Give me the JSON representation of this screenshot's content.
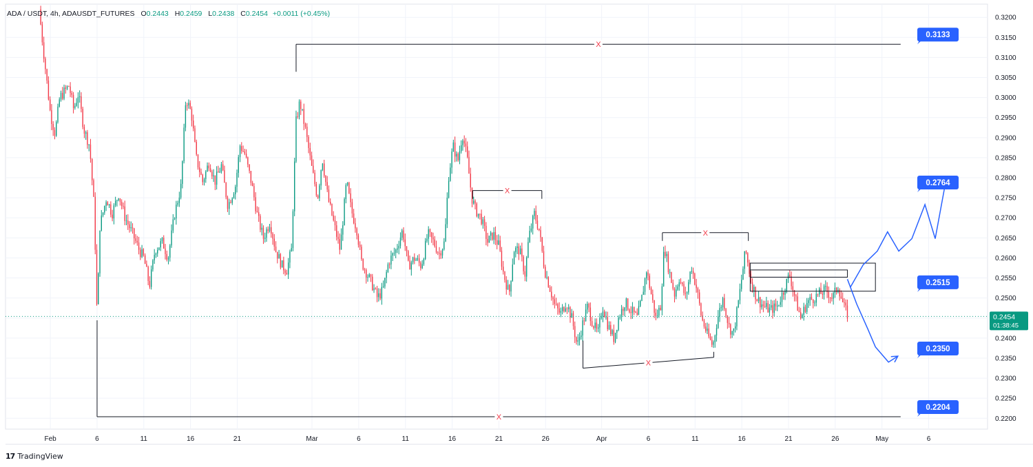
{
  "header": {
    "symbol": "ADA / USDT, 4h, ADAUSDT_FUTURES",
    "open_label": "O",
    "open": "0.2443",
    "high_label": "H",
    "high": "0.2459",
    "low_label": "L",
    "low": "0.2438",
    "close_label": "C",
    "close": "0.2454",
    "change": "+0.0011 (+0.45%)"
  },
  "watermark": {
    "logo": "17",
    "text": "TradingView"
  },
  "colors": {
    "up": "#089981",
    "down": "#f23645",
    "accent": "#2962ff",
    "grid": "#f0f3fa",
    "level_line": "#131722",
    "marker": "#f23645"
  },
  "chart_data": {
    "type": "candlestick",
    "title": "ADA / USDT, 4h, ADAUSDT_FUTURES",
    "ylim": [
      0.2173,
      0.3233
    ],
    "y_ticks": [
      "0.3200",
      "0.3150",
      "0.3100",
      "0.3050",
      "0.3000",
      "0.2950",
      "0.2900",
      "0.2850",
      "0.2800",
      "0.2750",
      "0.2700",
      "0.2650",
      "0.2600",
      "0.2550",
      "0.2500",
      "0.2450",
      "0.2400",
      "0.2350",
      "0.2300",
      "0.2250",
      "0.2200"
    ],
    "x_ticks": [
      {
        "label": "Feb",
        "t": 0
      },
      {
        "label": "6",
        "t": 5
      },
      {
        "label": "11",
        "t": 10
      },
      {
        "label": "16",
        "t": 15
      },
      {
        "label": "21",
        "t": 20
      },
      {
        "label": "Mar",
        "t": 28
      },
      {
        "label": "6",
        "t": 33
      },
      {
        "label": "11",
        "t": 38
      },
      {
        "label": "16",
        "t": 43
      },
      {
        "label": "21",
        "t": 48
      },
      {
        "label": "26",
        "t": 53
      },
      {
        "label": "Apr",
        "t": 59
      },
      {
        "label": "6",
        "t": 64
      },
      {
        "label": "11",
        "t": 69
      },
      {
        "label": "16",
        "t": 74
      },
      {
        "label": "21",
        "t": 79
      },
      {
        "label": "26",
        "t": 84
      },
      {
        "label": "May",
        "t": 89
      },
      {
        "label": "6",
        "t": 94
      }
    ],
    "t_range": [
      -4.8,
      100.3
    ],
    "price_path": [
      [
        -1.2,
        0.322
      ],
      [
        -0.8,
        0.313
      ],
      [
        0,
        0.296
      ],
      [
        0.5,
        0.291
      ],
      [
        1,
        0.3
      ],
      [
        2,
        0.303
      ],
      [
        2.5,
        0.297
      ],
      [
        3,
        0.301
      ],
      [
        3.6,
        0.292
      ],
      [
        4.2,
        0.288
      ],
      [
        4.7,
        0.272
      ],
      [
        5,
        0.245
      ],
      [
        5.3,
        0.268
      ],
      [
        6,
        0.275
      ],
      [
        6.6,
        0.271
      ],
      [
        7.3,
        0.276
      ],
      [
        8,
        0.27
      ],
      [
        8.8,
        0.266
      ],
      [
        9.5,
        0.262
      ],
      [
        10,
        0.26
      ],
      [
        10.6,
        0.253
      ],
      [
        11.2,
        0.262
      ],
      [
        12,
        0.264
      ],
      [
        12.6,
        0.26
      ],
      [
        13.3,
        0.271
      ],
      [
        14,
        0.278
      ],
      [
        14.5,
        0.3
      ],
      [
        15.1,
        0.296
      ],
      [
        15.6,
        0.285
      ],
      [
        16.3,
        0.279
      ],
      [
        17,
        0.284
      ],
      [
        17.6,
        0.279
      ],
      [
        18.3,
        0.283
      ],
      [
        19,
        0.273
      ],
      [
        19.8,
        0.278
      ],
      [
        20.3,
        0.288
      ],
      [
        20.8,
        0.286
      ],
      [
        21.5,
        0.279
      ],
      [
        22.2,
        0.27
      ],
      [
        22.8,
        0.265
      ],
      [
        23.5,
        0.269
      ],
      [
        24.1,
        0.262
      ],
      [
        24.8,
        0.258
      ],
      [
        25.3,
        0.257
      ],
      [
        25.8,
        0.262
      ],
      [
        26.3,
        0.294
      ],
      [
        26.7,
        0.299
      ],
      [
        27.3,
        0.292
      ],
      [
        28,
        0.282
      ],
      [
        28.6,
        0.275
      ],
      [
        29.1,
        0.285
      ],
      [
        29.7,
        0.275
      ],
      [
        30.4,
        0.268
      ],
      [
        31,
        0.262
      ],
      [
        31.7,
        0.279
      ],
      [
        32.2,
        0.272
      ],
      [
        32.8,
        0.267
      ],
      [
        33.3,
        0.259
      ],
      [
        33.9,
        0.256
      ],
      [
        34.5,
        0.253
      ],
      [
        35,
        0.25
      ],
      [
        35.6,
        0.252
      ],
      [
        36.2,
        0.259
      ],
      [
        37,
        0.262
      ],
      [
        37.7,
        0.267
      ],
      [
        38.3,
        0.258
      ],
      [
        39,
        0.26
      ],
      [
        39.7,
        0.258
      ],
      [
        40.4,
        0.266
      ],
      [
        41,
        0.264
      ],
      [
        41.6,
        0.261
      ],
      [
        42.2,
        0.264
      ],
      [
        42.6,
        0.28
      ],
      [
        43.1,
        0.288
      ],
      [
        43.6,
        0.284
      ],
      [
        44.1,
        0.291
      ],
      [
        44.6,
        0.285
      ],
      [
        45.1,
        0.275
      ],
      [
        45.5,
        0.272
      ],
      [
        46.1,
        0.27
      ],
      [
        46.8,
        0.264
      ],
      [
        47.4,
        0.266
      ],
      [
        48,
        0.263
      ],
      [
        48.5,
        0.256
      ],
      [
        49.1,
        0.251
      ],
      [
        49.6,
        0.262
      ],
      [
        50.2,
        0.262
      ],
      [
        50.8,
        0.256
      ],
      [
        51.2,
        0.265
      ],
      [
        51.8,
        0.271
      ],
      [
        52.3,
        0.267
      ],
      [
        52.9,
        0.257
      ],
      [
        53.4,
        0.253
      ],
      [
        54,
        0.248
      ],
      [
        54.6,
        0.246
      ],
      [
        55.2,
        0.249
      ],
      [
        55.8,
        0.245
      ],
      [
        56.4,
        0.238
      ],
      [
        56.9,
        0.243
      ],
      [
        57.5,
        0.248
      ],
      [
        58,
        0.244
      ],
      [
        58.6,
        0.241
      ],
      [
        59.1,
        0.248
      ],
      [
        59.7,
        0.243
      ],
      [
        60.3,
        0.24
      ],
      [
        60.8,
        0.245
      ],
      [
        61.5,
        0.249
      ],
      [
        62.1,
        0.247
      ],
      [
        62.8,
        0.245
      ],
      [
        63.3,
        0.25
      ],
      [
        63.8,
        0.257
      ],
      [
        64.3,
        0.251
      ],
      [
        64.8,
        0.245
      ],
      [
        65.3,
        0.248
      ],
      [
        65.7,
        0.263
      ],
      [
        66.2,
        0.257
      ],
      [
        66.8,
        0.251
      ],
      [
        67.3,
        0.255
      ],
      [
        68,
        0.25
      ],
      [
        68.6,
        0.258
      ],
      [
        69.2,
        0.252
      ],
      [
        69.7,
        0.245
      ],
      [
        70.3,
        0.241
      ],
      [
        70.9,
        0.238
      ],
      [
        71.4,
        0.245
      ],
      [
        72,
        0.25
      ],
      [
        72.6,
        0.243
      ],
      [
        73.1,
        0.241
      ],
      [
        73.7,
        0.25
      ],
      [
        74.4,
        0.262
      ],
      [
        75,
        0.254
      ],
      [
        75.6,
        0.25
      ],
      [
        76.3,
        0.248
      ],
      [
        77,
        0.247
      ],
      [
        77.8,
        0.248
      ],
      [
        78.5,
        0.252
      ],
      [
        79.1,
        0.256
      ],
      [
        79.7,
        0.25
      ],
      [
        80.3,
        0.245
      ],
      [
        81,
        0.249
      ],
      [
        81.7,
        0.25
      ],
      [
        82.3,
        0.251
      ],
      [
        83,
        0.252
      ],
      [
        83.7,
        0.25
      ],
      [
        84.3,
        0.253
      ],
      [
        84.9,
        0.248
      ],
      [
        85.4,
        0.2454
      ]
    ],
    "levels": [
      {
        "value": 0.3133,
        "label": "0.3133",
        "t_start": 26.3,
        "t_end": 91.0,
        "x_marker": "X"
      },
      {
        "value": 0.2204,
        "label": "0.2204",
        "t_start": 5.0,
        "t_end": 91.0,
        "x_marker": "X"
      }
    ],
    "horizontal_segments": [
      {
        "t_start": 45.2,
        "t_end": 52.6,
        "value": 0.2768,
        "x_marker": "X"
      },
      {
        "t_start": 65.5,
        "t_end": 74.7,
        "value": 0.2663,
        "x_marker": "X"
      }
    ],
    "trend_line": {
      "points": [
        [
          57.0,
          0.2325
        ],
        [
          71.0,
          0.2352
        ]
      ],
      "x_marker": "X"
    },
    "boxes": [
      {
        "t_start": 74.9,
        "t_end": 88.3,
        "top": 0.2587,
        "bottom": 0.2517
      },
      {
        "t_start": 74.9,
        "t_end": 85.3,
        "top": 0.257,
        "bottom": 0.2552
      }
    ],
    "callouts": [
      {
        "label": "0.3133",
        "value": 0.3133
      },
      {
        "label": "0.2764",
        "value": 0.2764
      },
      {
        "label": "0.2515",
        "value": 0.2515
      },
      {
        "label": "0.2350",
        "value": 0.235
      },
      {
        "label": "0.2204",
        "value": 0.2204
      }
    ],
    "projection_up": [
      [
        85.6,
        0.2526
      ],
      [
        87.0,
        0.2583
      ],
      [
        88.5,
        0.2617
      ],
      [
        89.6,
        0.2665
      ],
      [
        90.8,
        0.2617
      ],
      [
        92.2,
        0.2648
      ],
      [
        93.6,
        0.2733
      ],
      [
        94.7,
        0.2648
      ],
      [
        95.9,
        0.28
      ]
    ],
    "projection_down": [
      [
        85.3,
        0.2547
      ],
      [
        86.3,
        0.2485
      ],
      [
        87.5,
        0.2422
      ],
      [
        88.3,
        0.2378
      ],
      [
        89.7,
        0.234
      ],
      [
        90.7,
        0.2355
      ]
    ],
    "current_price": {
      "value": 0.2454,
      "label": "0.2454",
      "countdown": "01:38:45"
    }
  }
}
